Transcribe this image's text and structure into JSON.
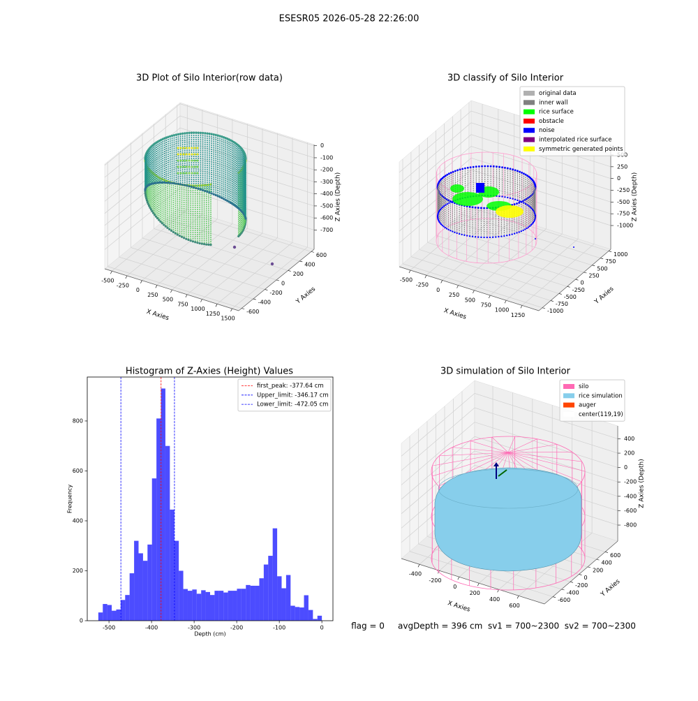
{
  "title": "ESESR05 2026-05-28 22:26:00",
  "chart_data": [
    {
      "type": "scatter3d",
      "title": "3D Plot of Silo Interior(row data)",
      "xlabel": "X Axies",
      "ylabel": "Y Axies",
      "zlabel": "Z Axies (Depth)",
      "xlim": [
        -620,
        1610
      ],
      "ylim": [
        -650,
        650
      ],
      "zlim": [
        -860,
        10
      ],
      "xticks": [
        -500,
        -250,
        0,
        250,
        500,
        750,
        1000,
        1250,
        1500
      ],
      "yticks": [
        -600,
        -400,
        -200,
        0,
        200,
        400,
        600
      ],
      "zticks": [
        -700,
        -600,
        -500,
        -400,
        -300,
        -200,
        -100,
        0
      ]
    },
    {
      "type": "scatter3d",
      "title": "3D classify of Silo Interior",
      "xlabel": "X Axies",
      "ylabel": "Y Axies",
      "zlabel": "Z Axies (Depth)",
      "xlim": [
        -675,
        1513
      ],
      "ylim": [
        -1105,
        1063
      ],
      "zlim": [
        -1505,
        723
      ],
      "xticks": [
        -500,
        -250,
        0,
        250,
        500,
        750,
        1000,
        1250
      ],
      "yticks": [
        -1000,
        -750,
        -500,
        -250,
        0,
        250,
        500,
        750,
        1000
      ],
      "zticks": [
        -1000,
        -750,
        -500,
        -250,
        0,
        250,
        500
      ],
      "legend": {
        "loc": "upper right",
        "items": [
          {
            "name": "original data",
            "color": "#b0b0b0"
          },
          {
            "name": "inner wall",
            "color": "#808080"
          },
          {
            "name": "rice surface",
            "color": "#00ff00"
          },
          {
            "name": "obstacle",
            "color": "#ff0000"
          },
          {
            "name": "noise",
            "color": "#0000ff"
          },
          {
            "name": "interpolated rice surface",
            "color": "#800080"
          },
          {
            "name": "symmetric generated points",
            "color": "#ffff00"
          }
        ]
      }
    },
    {
      "type": "histogram",
      "title": "Histogram of Z-Axies (Height) Values",
      "xlabel": "Depth (cm)",
      "ylabel": "Frequency",
      "color": "#0000ff",
      "bins": [
        -525,
        -514.5,
        -504,
        -493.5,
        -483,
        -472.5,
        -462,
        -451.5,
        -441,
        -430.5,
        -420,
        -409.5,
        -399,
        -388.5,
        -378,
        -367.5,
        -357,
        -346.5,
        -336,
        -325.5,
        -315,
        -304.5,
        -294,
        -283.5,
        -273,
        -262.5,
        -252,
        -241.5,
        -231,
        -220.5,
        -210,
        -199.5,
        -189,
        -178.5,
        -168,
        -157.5,
        -147,
        -136.5,
        -126,
        -115.5,
        -105,
        -94.5,
        -84,
        -73.5,
        -63,
        -52.5,
        -42,
        -31.5,
        -21,
        -10.5,
        0
      ],
      "values": [
        33,
        67,
        63,
        40,
        45,
        83,
        103,
        190,
        320,
        270,
        240,
        305,
        570,
        810,
        930,
        700,
        445,
        320,
        200,
        127,
        120,
        125,
        108,
        122,
        115,
        103,
        120,
        120,
        113,
        120,
        120,
        128,
        128,
        143,
        140,
        140,
        170,
        225,
        260,
        370,
        178,
        130,
        183,
        60,
        55,
        53,
        102,
        43,
        7,
        20
      ],
      "xlim": [
        -551,
        26
      ],
      "ylim": [
        0,
        976
      ],
      "xticks": [
        -500,
        -400,
        -300,
        -200,
        -100,
        0
      ],
      "yticks": [
        0,
        200,
        400,
        600,
        800
      ],
      "lines": [
        {
          "name": "first_peak: -377.64 cm",
          "value": -377.64,
          "color": "#ff0000"
        },
        {
          "name": "Upper_limit: -346.17 cm",
          "value": -346.17,
          "color": "#0000ff"
        },
        {
          "name": "Lower_limit: -472.05 cm",
          "value": -472.05,
          "color": "#0000ff"
        }
      ],
      "legend": {
        "loc": "upper right"
      }
    },
    {
      "type": "surface3d",
      "title": "3D simulation of Silo Interior",
      "xlabel": "X Axies",
      "ylabel": "Y Axies",
      "zlabel": "Z Axies (Depth)",
      "xlim": [
        -583,
        860
      ],
      "ylim": [
        -792,
        888
      ],
      "zlim": [
        -1023,
        579
      ],
      "xticks": [
        -400,
        -200,
        0,
        200,
        400,
        600
      ],
      "yticks": [
        -600,
        -400,
        -200,
        0,
        200,
        400,
        600
      ],
      "zticks": [
        -800,
        -600,
        -400,
        -200,
        0,
        200,
        400
      ],
      "legend": {
        "loc": "upper right",
        "items": [
          {
            "name": "silo",
            "color": "#ff69b4"
          },
          {
            "name": "rice simulation",
            "color": "#87ceeb"
          },
          {
            "name": "auger",
            "color": "#ff4500"
          },
          {
            "name": "center(119,19)",
            "color": "#ffffff"
          }
        ]
      }
    }
  ],
  "footer": "flag = 0     avgDepth = 396 cm  sv1 = 700~2300  sv2 = 700~2300"
}
